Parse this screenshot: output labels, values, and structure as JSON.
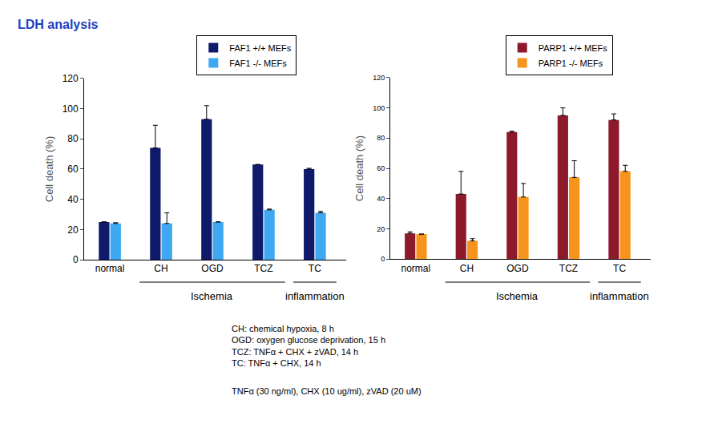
{
  "page_title": "LDH analysis",
  "chart_data": [
    {
      "type": "bar",
      "categories": [
        "normal",
        "CH",
        "OGD",
        "TCZ",
        "TC"
      ],
      "y_label": "Cell death (%)",
      "ylim": [
        0,
        120
      ],
      "yticks": [
        0,
        20,
        40,
        60,
        80,
        100,
        120
      ],
      "grid": false,
      "legend": "top right",
      "series": [
        {
          "name": "FAF1 +/+ MEFs",
          "color": "#0f1a6b",
          "values": [
            25,
            74,
            93,
            63,
            60
          ],
          "errors": [
            0,
            15,
            9,
            0,
            0.5
          ]
        },
        {
          "name": "FAF1 -/- MEFs",
          "color": "#3ea8f2",
          "values": [
            24,
            24,
            25,
            33,
            31
          ],
          "errors": [
            0.5,
            7,
            0,
            0.5,
            1
          ]
        }
      ],
      "groups": [
        {
          "label": "Ischemia",
          "categories": [
            "CH",
            "OGD",
            "TCZ"
          ]
        },
        {
          "label": "inflammation",
          "categories": [
            "TC"
          ]
        }
      ]
    },
    {
      "type": "bar",
      "categories": [
        "normal",
        "CH",
        "OGD",
        "TCZ",
        "TC"
      ],
      "y_label": "Cell death (%)",
      "ylim": [
        0,
        120
      ],
      "yticks": [
        0,
        20,
        40,
        60,
        80,
        100,
        120
      ],
      "grid": false,
      "legend": "top right",
      "series": [
        {
          "name": "PARP1 +/+ MEFs",
          "color": "#8c1a2b",
          "values": [
            17,
            43,
            84,
            95,
            92
          ],
          "errors": [
            1,
            15,
            0.5,
            5,
            4
          ]
        },
        {
          "name": "PARP1 -/- MEFs",
          "color": "#f7941d",
          "values": [
            16.5,
            12,
            41,
            54,
            58
          ],
          "errors": [
            0,
            1.5,
            9,
            11,
            4
          ]
        }
      ],
      "groups": [
        {
          "label": "Ischemia",
          "categories": [
            "CH",
            "OGD",
            "TCZ"
          ]
        },
        {
          "label": "inflammation",
          "categories": [
            "TC"
          ]
        }
      ]
    }
  ],
  "footnotes": [
    [
      "CH: chemical hypoxia, 8 h",
      "OGD: oxygen glucose deprivation, 15 h",
      "TCZ: TNFα + CHX + zVAD, 14 h",
      "TC: TNFα + CHX, 14 h"
    ],
    [
      "TNFα (30 ng/ml), CHX (10 ug/ml), zVAD (20 uM)"
    ]
  ]
}
